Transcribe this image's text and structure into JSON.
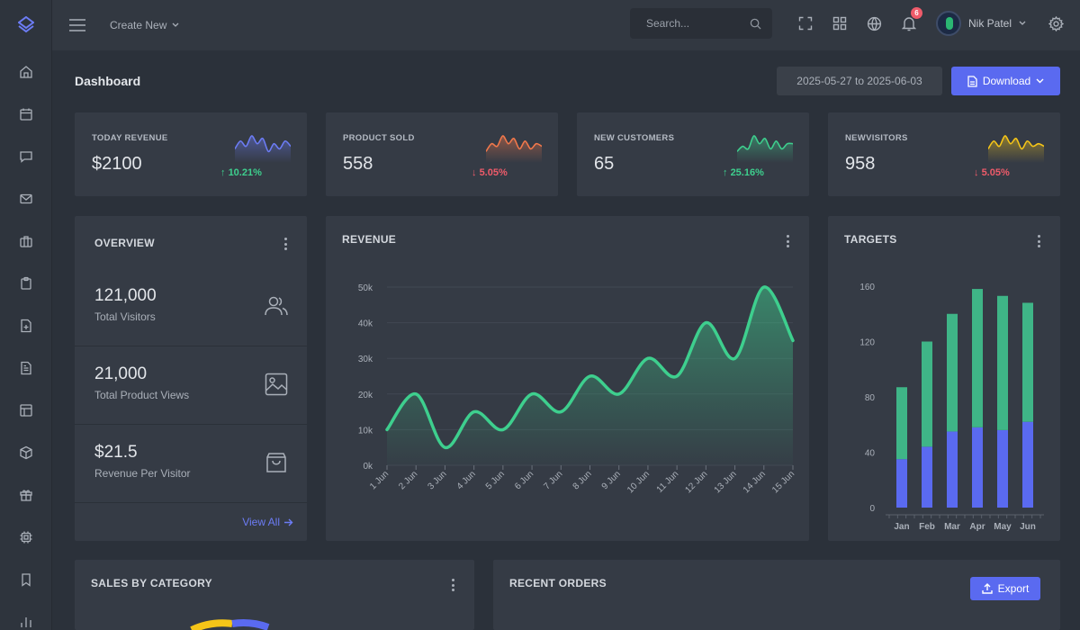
{
  "app": {
    "logo_icon": "layers-diamond-icon",
    "accent": "#5a6af0"
  },
  "sidebar": {
    "items": [
      {
        "icon": "home-icon"
      },
      {
        "icon": "calendar-icon"
      },
      {
        "icon": "chat-icon"
      },
      {
        "icon": "mail-icon"
      },
      {
        "icon": "briefcase-icon"
      },
      {
        "icon": "clipboard-icon"
      },
      {
        "icon": "file-plus-icon"
      },
      {
        "icon": "file-text-icon"
      },
      {
        "icon": "layout-icon"
      },
      {
        "icon": "box-icon"
      },
      {
        "icon": "gift-icon"
      },
      {
        "icon": "cpu-icon"
      },
      {
        "icon": "bookmark-icon"
      },
      {
        "icon": "bar-chart-icon"
      }
    ]
  },
  "topbar": {
    "create_new": "Create New",
    "search_placeholder": "Search...",
    "notification_count": "6",
    "user_name": "Nik Patel"
  },
  "page": {
    "title": "Dashboard",
    "date_range": "2025-05-27 to 2025-06-03",
    "download_label": "Download"
  },
  "stats": [
    {
      "label": "TODAY REVENUE",
      "value": "$2100",
      "change": "10.21%",
      "direction": "up",
      "color": "#6c7cf5",
      "spark": [
        4,
        7,
        5,
        9,
        6,
        8,
        3,
        6,
        4,
        7,
        5
      ]
    },
    {
      "label": "PRODUCT SOLD",
      "value": "558",
      "change": "5.05%",
      "direction": "down",
      "color": "#f2784b",
      "spark": [
        3,
        6,
        5,
        9,
        6,
        8,
        4,
        7,
        4,
        6,
        5
      ]
    },
    {
      "label": "NEW CUSTOMERS",
      "value": "65",
      "change": "25.16%",
      "direction": "up",
      "color": "#3ecf8e",
      "spark": [
        3,
        5,
        4,
        9,
        6,
        8,
        4,
        7,
        4,
        6,
        6
      ]
    },
    {
      "label": "NEWVISITORS",
      "value": "958",
      "change": "5.05%",
      "direction": "down",
      "color": "#f5c518",
      "spark": [
        4,
        7,
        5,
        9,
        6,
        8,
        4,
        7,
        5,
        6,
        5
      ]
    }
  ],
  "overview": {
    "title": "OVERVIEW",
    "rows": [
      {
        "value": "121,000",
        "label": "Total Visitors",
        "icon": "users-icon"
      },
      {
        "value": "21,000",
        "label": "Total Product Views",
        "icon": "image-icon"
      },
      {
        "value": "$21.5",
        "label": "Revenue Per Visitor",
        "icon": "shopping-bag-icon"
      }
    ],
    "view_all": "View All"
  },
  "revenue": {
    "title": "REVENUE",
    "chart_data": {
      "type": "area",
      "x": [
        "1 Jun",
        "2 Jun",
        "3 Jun",
        "4 Jun",
        "5 Jun",
        "6 Jun",
        "7 Jun",
        "8 Jun",
        "9 Jun",
        "10 Jun",
        "11 Jun",
        "12 Jun",
        "13 Jun",
        "14 Jun",
        "15 Jun"
      ],
      "series": [
        {
          "values": [
            10000,
            20000,
            5000,
            15000,
            10000,
            20000,
            15000,
            25000,
            20000,
            30000,
            25000,
            40000,
            30000,
            50000,
            35000
          ]
        }
      ],
      "ylim": [
        0,
        50000
      ],
      "yticks": [
        "0k",
        "10k",
        "20k",
        "30k",
        "40k",
        "50k"
      ],
      "color": "#3ecf8e",
      "grid": true
    }
  },
  "targets": {
    "title": "TARGETS",
    "chart_data": {
      "type": "bar",
      "stacked": true,
      "categories": [
        "Jan",
        "Feb",
        "Mar",
        "Apr",
        "May",
        "Jun"
      ],
      "series": [
        {
          "color": "#5a6af0",
          "values": [
            35,
            44,
            55,
            58,
            56,
            62
          ]
        },
        {
          "color": "#3fb587",
          "values": [
            52,
            76,
            85,
            100,
            97,
            86
          ]
        }
      ],
      "ylim": [
        0,
        160
      ],
      "yticks": [
        "0",
        "40",
        "80",
        "120",
        "160"
      ]
    }
  },
  "sales": {
    "title": "SALES BY CATEGORY"
  },
  "orders": {
    "title": "RECENT ORDERS",
    "export_label": "Export"
  }
}
